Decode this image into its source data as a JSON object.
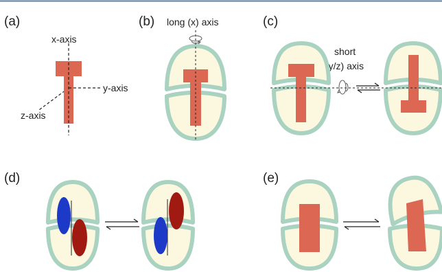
{
  "top_rule_color": "#5b7fa6",
  "colors": {
    "capsule_fill": "#fbf8df",
    "capsule_rim": "#a9d2c0",
    "block": "#dc6753",
    "blue_ellipse": "#1d39c8",
    "red_ellipse": "#a11a12",
    "line": "#222222"
  },
  "panels": {
    "a": {
      "label": "(a)",
      "x_axis": "x-axis",
      "y_axis": "y-axis",
      "z_axis": "z-axis"
    },
    "b": {
      "label": "(b)",
      "axis_label": "long (x) axis"
    },
    "c": {
      "label": "(c)",
      "axis_label_line1": "short",
      "axis_label_line2": "(y/z) axis"
    },
    "d": {
      "label": "(d)"
    },
    "e": {
      "label": "(e)"
    }
  }
}
